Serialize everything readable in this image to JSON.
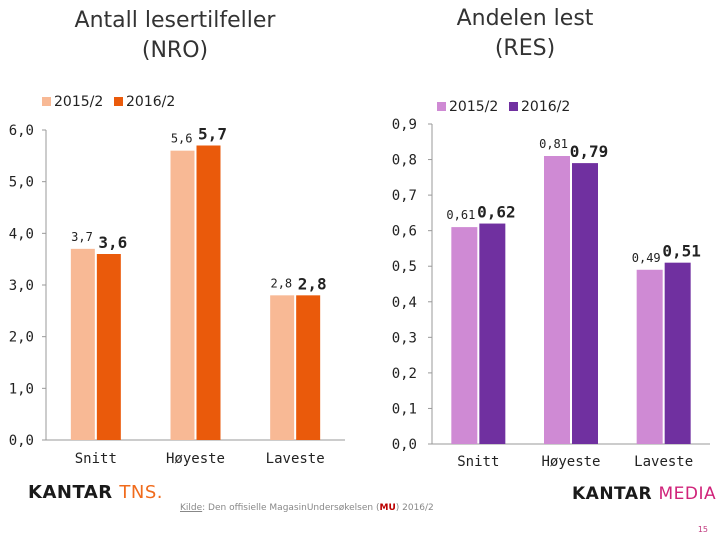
{
  "chart_data": [
    {
      "type": "bar",
      "title": "Antall lesertilfeller (NRO)",
      "title_lines": [
        "Antall lesertilfeller",
        "(NRO)"
      ],
      "categories": [
        "Snitt",
        "Høyeste",
        "Laveste"
      ],
      "series": [
        {
          "name": "2015/2",
          "color": "#f8b995",
          "values": [
            3.7,
            5.6,
            2.8
          ],
          "labels": [
            "3,7",
            "5,6",
            "2,8"
          ]
        },
        {
          "name": "2016/2",
          "color": "#ea5a0b",
          "values": [
            3.6,
            5.7,
            2.8
          ],
          "labels": [
            "3,6",
            "5,7",
            "2,8"
          ]
        }
      ],
      "ylim": [
        0,
        6
      ],
      "yticks": [
        0,
        1,
        2,
        3,
        4,
        5,
        6
      ],
      "ytick_labels": [
        "0,0",
        "1,0",
        "2,0",
        "3,0",
        "4,0",
        "5,0",
        "6,0"
      ],
      "legend": "top",
      "grid": false
    },
    {
      "type": "bar",
      "title": "Andelen lest (RES)",
      "title_lines": [
        "Andelen lest",
        "(RES)"
      ],
      "categories": [
        "Snitt",
        "Høyeste",
        "Laveste"
      ],
      "series": [
        {
          "name": "2015/2",
          "color": "#cf8ad4",
          "values": [
            0.61,
            0.81,
            0.49
          ],
          "labels": [
            "0,61",
            "0,81",
            "0,49"
          ]
        },
        {
          "name": "2016/2",
          "color": "#7030a0",
          "values": [
            0.62,
            0.79,
            0.51
          ],
          "labels": [
            "0,62",
            "0,79",
            "0,51"
          ]
        }
      ],
      "ylim": [
        0,
        0.9
      ],
      "yticks": [
        0,
        0.1,
        0.2,
        0.3,
        0.4,
        0.5,
        0.6,
        0.7,
        0.8,
        0.9
      ],
      "ytick_labels": [
        "0,0",
        "0,1",
        "0,2",
        "0,3",
        "0,4",
        "0,5",
        "0,6",
        "0,7",
        "0,8",
        "0,9"
      ],
      "legend": "top",
      "grid": false
    }
  ],
  "footer": {
    "logo_left_main": "KANTAR",
    "logo_left_accent": "TNS.",
    "logo_right_main": "KANTAR",
    "logo_right_accent": "MEDIA",
    "source_label": "Kilde",
    "source_text": ": Den offisielle MagasinUndersøkelsen (",
    "source_mu": "MU",
    "source_end": ") 2016/2",
    "page_number": "15"
  }
}
